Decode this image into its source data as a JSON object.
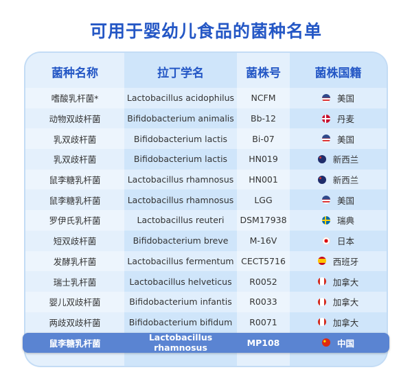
{
  "title": "可用于婴幼儿食品的菌种名单",
  "headers": [
    "菌种名称",
    "拉丁学名",
    "菌株号",
    "菌株国籍"
  ],
  "rows": [
    {
      "name": "嗜酸乳杆菌*",
      "latin": "Lactobacillus acidophilus",
      "strain": "NCFM",
      "flag": "us",
      "country": "美国"
    },
    {
      "name": "动物双歧杆菌",
      "latin": "Bifidobacterium animalis",
      "strain": "Bb-12",
      "flag": "dk",
      "country": "丹麦"
    },
    {
      "name": "乳双歧杆菌",
      "latin": "Bifidobacterium lactis",
      "strain": "Bi-07",
      "flag": "us",
      "country": "美国"
    },
    {
      "name": "乳双歧杆菌",
      "latin": "Bifidobacterium lactis",
      "strain": "HN019",
      "flag": "nz",
      "country": "新西兰"
    },
    {
      "name": "鼠李糖乳杆菌",
      "latin": "Lactobacillus rhamnosus",
      "strain": "HN001",
      "flag": "nz",
      "country": "新西兰"
    },
    {
      "name": "鼠李糖乳杆菌",
      "latin": "Lactobacillus rhamnosus",
      "strain": "LGG",
      "flag": "us",
      "country": "美国"
    },
    {
      "name": "罗伊氏乳杆菌",
      "latin": "Lactobacillus reuteri",
      "strain": "DSM17938",
      "flag": "se",
      "country": "瑞典"
    },
    {
      "name": "短双歧杆菌",
      "latin": "Bifidobacterium breve",
      "strain": "M-16V",
      "flag": "jp",
      "country": "日本"
    },
    {
      "name": "发酵乳杆菌",
      "latin": "Lactobacillus fermentum",
      "strain": "CECT5716",
      "flag": "es",
      "country": "西班牙"
    },
    {
      "name": "瑞士乳杆菌",
      "latin": "Lactobacillus helveticus",
      "strain": "R0052",
      "flag": "ca",
      "country": "加拿大"
    },
    {
      "name": "婴儿双歧杆菌",
      "latin": "Bifidobacterium infantis",
      "strain": "R0033",
      "flag": "ca",
      "country": "加拿大"
    },
    {
      "name": "两歧双歧杆菌",
      "latin": "Bifidobacterium bifidum",
      "strain": "R0071",
      "flag": "ca",
      "country": "加拿大"
    },
    {
      "name": "鼠李糖乳杆菌",
      "latin": "Lactobacillus rhamnosus",
      "strain": "MP108",
      "flag": "cn",
      "country": "中国",
      "highlight": true
    }
  ],
  "colors": {
    "title": "#2457c5",
    "highlight": "#5a84d2"
  }
}
